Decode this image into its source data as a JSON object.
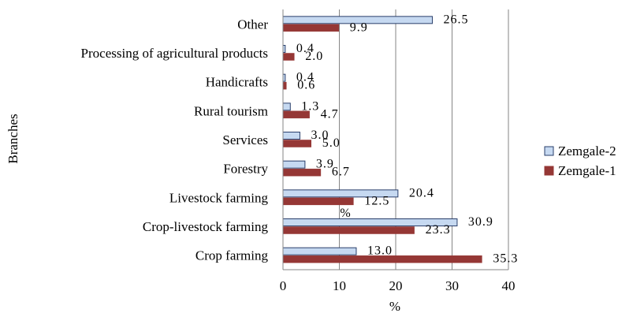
{
  "chart_data": {
    "type": "bar",
    "orientation": "horizontal",
    "title": "",
    "xlabel": "%",
    "ylabel": "Branches",
    "xlim": [
      0,
      40
    ],
    "xticks": [
      0,
      10,
      20,
      30,
      40
    ],
    "grid": "vertical",
    "legend_position": "right",
    "categories": [
      "Other",
      "Processing of agricultural products",
      "Handicrafts",
      "Rural tourism",
      "Services",
      "Forestry",
      "Livestock farming",
      "Crop-livestock farming",
      "Crop farming"
    ],
    "series": [
      {
        "name": "Zemgale-2",
        "color": "#c6d9f1",
        "values": [
          26.5,
          0.4,
          0.4,
          1.3,
          3.0,
          3.9,
          20.4,
          30.9,
          13.0
        ],
        "labels": [
          "26.5",
          "0.4",
          "0.4",
          "1.3",
          "3.0",
          "3.9",
          "20.4",
          "30.9",
          "13.0"
        ]
      },
      {
        "name": "Zemgale-1",
        "color": "#953735",
        "values": [
          9.9,
          2.0,
          0.6,
          4.7,
          5.0,
          6.7,
          12.5,
          23.3,
          35.3
        ],
        "labels": [
          "9.9",
          "2.0",
          "0.6",
          "4.7",
          "5.0",
          "6.7",
          "12.5",
          "23.3",
          "35.3"
        ]
      }
    ],
    "annotations": [
      "%"
    ]
  }
}
